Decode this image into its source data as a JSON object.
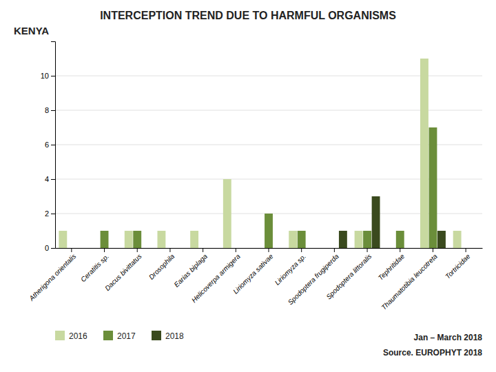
{
  "chart_data": {
    "type": "bar",
    "title": "INTERCEPTION TREND DUE TO HARMFUL ORGANISMS",
    "subtitle": "Jan – March 2018",
    "annotations": [
      "KENYA",
      "Source. EUROPHYT 2018"
    ],
    "categories": [
      "Atherigona orientalis",
      "Ceratitis sp.",
      "Dacus bivittatus",
      "Drosophila",
      "Earias biplaga",
      "Helicoverpa armigera",
      "Liriomyza sativae",
      "Liriomyza sp.",
      "Spodoptera frugiperda",
      "Spodoptera littoralis",
      "Tephritidae",
      "Thaumatotibia leucotreta",
      "Tortricidae"
    ],
    "series": [
      {
        "name": "2016",
        "color": "#c8d9a0",
        "values": [
          1,
          0,
          1,
          1,
          1,
          4,
          0,
          1,
          0,
          1,
          0,
          11,
          1
        ]
      },
      {
        "name": "2017",
        "color": "#6b8e3a",
        "values": [
          0,
          1,
          1,
          0,
          0,
          0,
          2,
          1,
          0,
          1,
          1,
          7,
          0
        ]
      },
      {
        "name": "2018",
        "color": "#3a4a1e",
        "values": [
          0,
          0,
          0,
          0,
          0,
          0,
          0,
          0,
          1,
          3,
          0,
          1,
          0
        ]
      }
    ],
    "ylim": [
      0,
      12
    ],
    "yticks": [
      0,
      2,
      4,
      6,
      8,
      10
    ],
    "grid": true,
    "legend": "bottom"
  }
}
